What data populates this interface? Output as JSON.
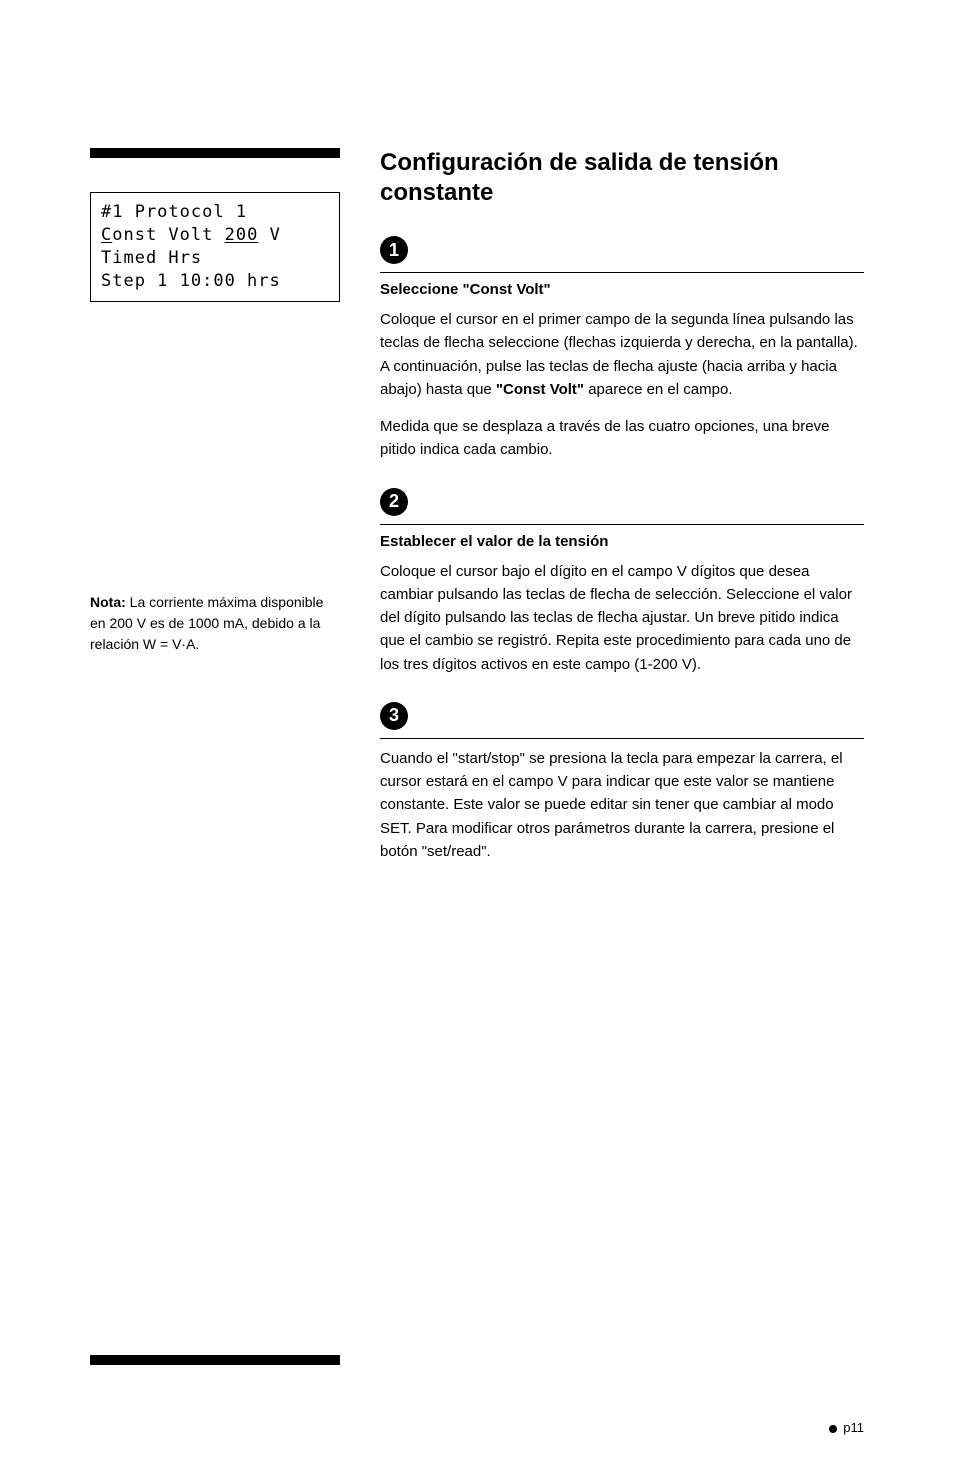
{
  "left": {
    "lcd": {
      "line1_pre": "#1 Protocol 1",
      "line2_c": "C",
      "line2_mid": "onst Volt ",
      "line2_num": "200",
      "line2_post": " V",
      "line3": "Timed Hrs",
      "line4": "Step 1 10:00 hrs"
    },
    "note": {
      "label": "Nota:",
      "text": " La corriente máxima disponible en 200 V es de 1000 mA, debido a la relación W = V·A."
    }
  },
  "right": {
    "title": "Configuración de salida de tensión constante",
    "steps": [
      {
        "num": "1",
        "subhead": "Seleccione \"Const Volt\"",
        "paras": [
          {
            "pre": "Coloque el cursor en el primer campo de la segunda línea pulsando las teclas de flecha seleccione (flechas izquierda y derecha, en la pantalla). A continuación, pulse las teclas de flecha ajuste (hacia arriba y hacia abajo) hasta que ",
            "bold": "\"Const Volt\"",
            "post": " aparece en el campo."
          },
          {
            "pre": "Medida que se desplaza a través de las cuatro opciones, una breve pitido indica cada cambio.",
            "bold": "",
            "post": ""
          }
        ]
      },
      {
        "num": "2",
        "subhead": "Establecer el valor de la tensión",
        "paras": [
          {
            "pre": "Coloque el cursor bajo el dígito en el campo V dígitos que desea cambiar pulsando las teclas de flecha de selección. Seleccione el valor del dígito pulsando las teclas de flecha ajustar. Un breve pitido indica que el cambio se registró. Repita este procedimiento para cada uno de los tres dígitos activos en este campo (1-200 V).",
            "bold": "",
            "post": ""
          }
        ]
      },
      {
        "num": "3",
        "subhead": "",
        "paras": [
          {
            "pre": "Cuando el \"start/stop\" se presiona la tecla para empezar la carrera, el cursor estará en el campo V para indicar que este valor se mantiene constante. Este valor se puede editar sin tener que cambiar al modo SET. Para modificar otros parámetros durante la carrera, presione el botón \"set/read\".",
            "bold": "",
            "post": ""
          }
        ]
      }
    ]
  },
  "pagenum": "p11"
}
